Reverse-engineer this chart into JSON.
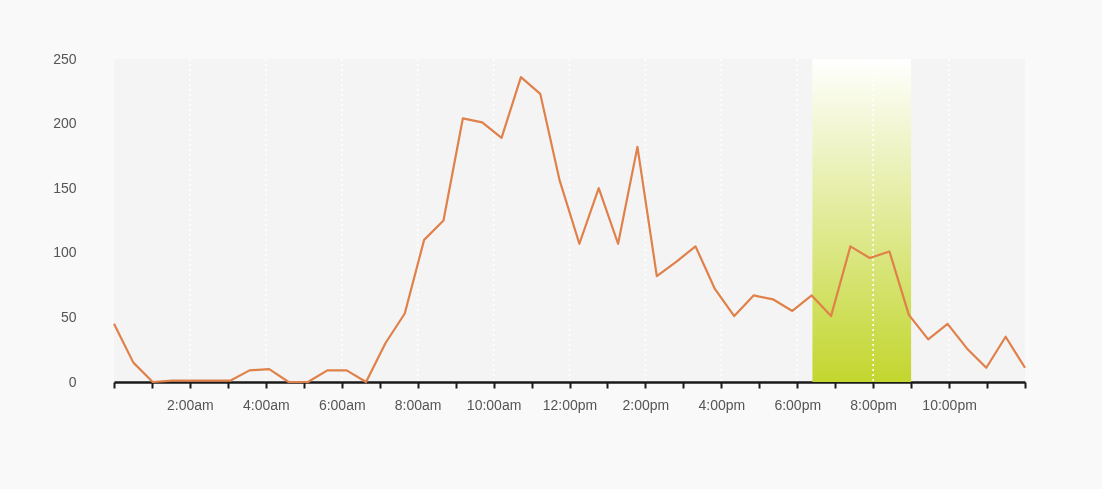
{
  "chart_data": {
    "type": "line",
    "x": [
      0,
      0.51,
      1.02,
      1.53,
      2.04,
      2.55,
      3.06,
      3.57,
      4.09,
      4.6,
      5.11,
      5.62,
      6.13,
      6.64,
      7.15,
      7.66,
      8.17,
      8.68,
      9.19,
      9.7,
      10.21,
      10.72,
      11.23,
      11.74,
      12.26,
      12.77,
      13.28,
      13.79,
      14.3,
      14.81,
      15.32,
      15.83,
      16.34,
      16.85,
      17.36,
      17.87,
      18.38,
      18.89,
      19.4,
      19.91,
      20.43,
      20.94,
      21.45,
      21.96,
      22.47,
      22.98,
      23.49,
      24
    ],
    "series": [
      {
        "color": "#e0804a",
        "values": [
          45,
          15,
          0,
          1,
          1,
          1,
          1,
          9,
          10,
          0,
          0,
          9,
          9,
          0,
          30,
          53,
          110,
          125,
          204,
          201,
          189,
          236,
          223,
          156,
          107,
          150,
          107,
          182,
          82,
          93,
          105,
          72,
          51,
          67,
          64,
          55,
          67,
          51,
          105,
          96,
          101,
          52,
          33,
          45,
          26,
          11,
          35,
          11
        ]
      }
    ],
    "xlim": [
      0,
      24
    ],
    "xticks": [
      {
        "value": 0,
        "label": null
      },
      {
        "value": 1,
        "label": null
      },
      {
        "value": 2,
        "label": "2:00am"
      },
      {
        "value": 3,
        "label": null
      },
      {
        "value": 4,
        "label": "4:00am"
      },
      {
        "value": 5,
        "label": null
      },
      {
        "value": 6,
        "label": "6:00am"
      },
      {
        "value": 7,
        "label": null
      },
      {
        "value": 8,
        "label": "8:00am"
      },
      {
        "value": 9,
        "label": null
      },
      {
        "value": 10,
        "label": "10:00am"
      },
      {
        "value": 11,
        "label": null
      },
      {
        "value": 12,
        "label": "12:00pm"
      },
      {
        "value": 13,
        "label": null
      },
      {
        "value": 14,
        "label": "2:00pm"
      },
      {
        "value": 15,
        "label": null
      },
      {
        "value": 16,
        "label": "4:00pm"
      },
      {
        "value": 17,
        "label": null
      },
      {
        "value": 18,
        "label": "6:00pm"
      },
      {
        "value": 19,
        "label": null
      },
      {
        "value": 20,
        "label": "8:00pm"
      },
      {
        "value": 21,
        "label": null
      },
      {
        "value": 22,
        "label": "10:00pm"
      },
      {
        "value": 23,
        "label": null
      },
      {
        "value": 24,
        "label": null
      }
    ],
    "ylim": [
      0,
      250
    ],
    "yticks": [
      0,
      50,
      100,
      150,
      200,
      250
    ],
    "bands": [
      {
        "axis": "x",
        "from": 18.4,
        "to": 21,
        "color": "#c2d62e"
      }
    ],
    "grid": "x",
    "marker": "none",
    "line_style": "solid"
  }
}
